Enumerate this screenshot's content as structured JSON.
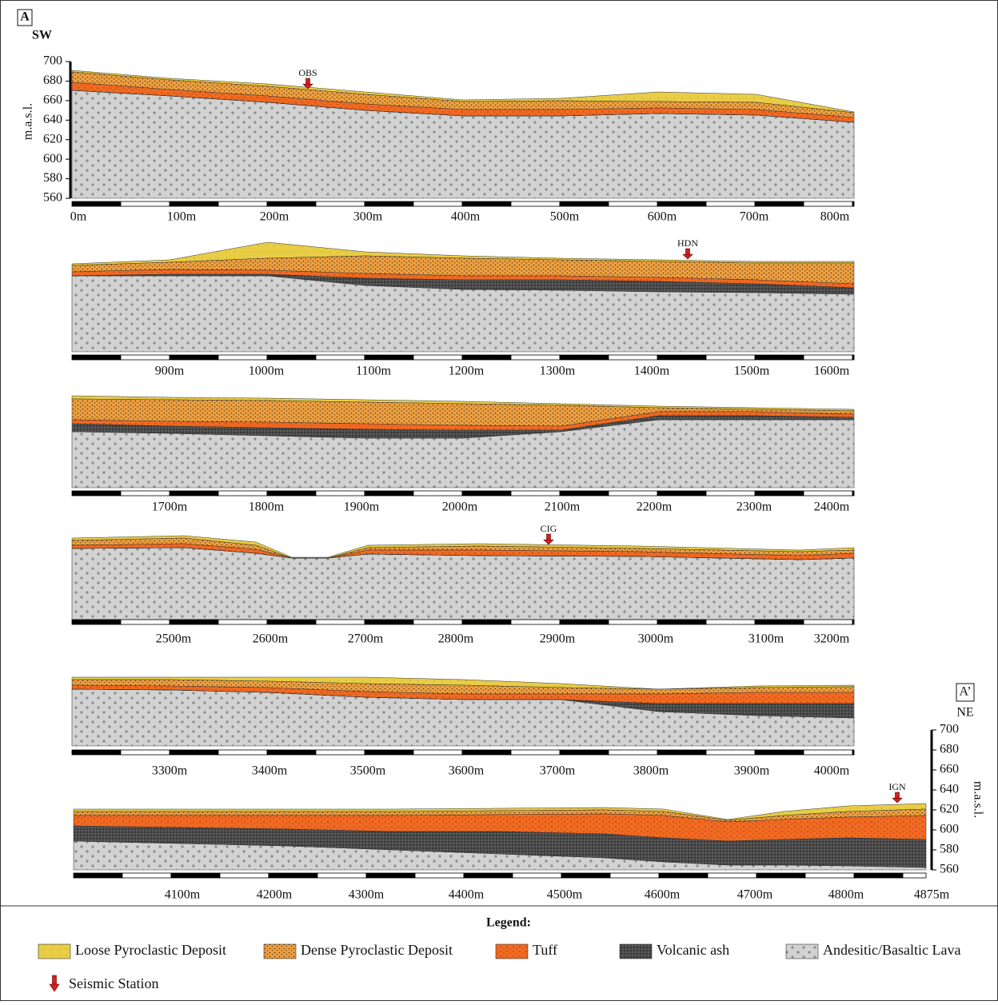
{
  "header": {
    "section_start": "A",
    "start_direction": "SW",
    "section_end": "A’",
    "end_direction": "NE"
  },
  "elevation_axis": {
    "label": "m.a.s.l.",
    "ticks": [
      700,
      680,
      660,
      640,
      620,
      600,
      580,
      560
    ]
  },
  "panels": [
    {
      "distance_labels": [
        "0m",
        "100m",
        "200m",
        "300m",
        "400m",
        "500m",
        "600m",
        "700m",
        "800m"
      ]
    },
    {
      "distance_labels": [
        "900m",
        "1000m",
        "1100m",
        "1200m",
        "1300m",
        "1400m",
        "1500m",
        "1600m"
      ]
    },
    {
      "distance_labels": [
        "1700m",
        "1800m",
        "1900m",
        "2000m",
        "2100m",
        "2200m",
        "2300m",
        "2400m"
      ]
    },
    {
      "distance_labels": [
        "2500m",
        "2600m",
        "2700m",
        "2800m",
        "2900m",
        "3000m",
        "3100m",
        "3200m"
      ]
    },
    {
      "distance_labels": [
        "3300m",
        "3400m",
        "3500m",
        "3600m",
        "3700m",
        "3800m",
        "3900m",
        "4000m"
      ]
    },
    {
      "distance_labels": [
        "4100m",
        "4200m",
        "4300m",
        "4400m",
        "4500m",
        "4600m",
        "4700m",
        "4800m",
        "4875m"
      ]
    }
  ],
  "stations": [
    {
      "label": "OBS"
    },
    {
      "label": "HDN"
    },
    {
      "label": "CIG"
    },
    {
      "label": "IGN"
    }
  ],
  "legend": {
    "title": "Legend:",
    "items": [
      "Loose Pyroclastic Deposit",
      "Dense Pyroclastic Deposit",
      "Tuff",
      "Volcanic ash",
      "Andesitic/Basaltic Lava"
    ],
    "station": "Seismic Station"
  }
}
